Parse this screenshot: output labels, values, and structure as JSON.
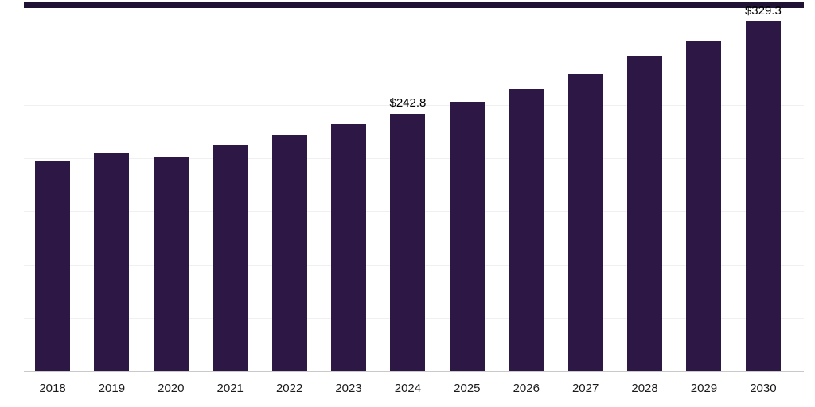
{
  "chart_data": {
    "type": "bar",
    "title": "",
    "xlabel": "",
    "ylabel": "",
    "categories": [
      "2018",
      "2019",
      "2020",
      "2021",
      "2022",
      "2023",
      "2024",
      "2025",
      "2026",
      "2027",
      "2028",
      "2029",
      "2030"
    ],
    "values": [
      198,
      206,
      202,
      213,
      222,
      233,
      242.8,
      254,
      266,
      280,
      296,
      311,
      329.3
    ],
    "data_labels": [
      {
        "category": "2024",
        "text": "$242.8"
      },
      {
        "category": "2030",
        "text": "$329.3"
      }
    ],
    "ylim": [
      0,
      345
    ],
    "gridline_step": 50,
    "grid": true,
    "y_axis_labels_visible": false,
    "legend_position": "none",
    "bar_color": "#2d1745",
    "top_line_color": "#1f1235",
    "gridline_color": "#f0f0f2",
    "axis_line_color": "#c9c9cc",
    "tick_label_color": "#1a1a1a"
  }
}
